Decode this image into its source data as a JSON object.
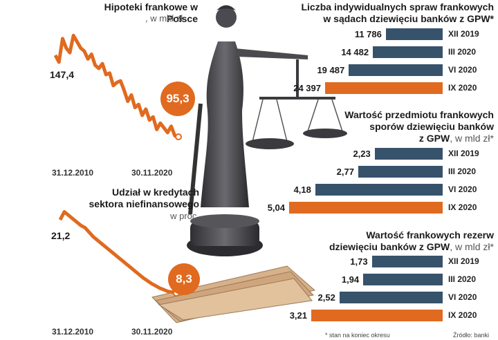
{
  "chart_data": [
    {
      "type": "line",
      "title": "Hipoteki frankowe w Polsce",
      "unit": ", w mld zł",
      "x": [
        "31.12.2010",
        "30.11.2020"
      ],
      "start_value": 147.4,
      "end_value": 95.3,
      "start_label": "147,4",
      "end_label": "95,3",
      "series_trend": [
        147.4,
        143,
        158,
        152,
        149,
        160,
        156,
        152,
        150,
        145,
        148,
        141,
        139,
        142,
        135,
        136,
        128,
        130,
        131,
        125,
        118,
        122,
        114,
        116,
        109,
        113,
        106,
        108,
        100,
        104,
        101,
        98,
        102,
        96,
        95.3
      ],
      "ylim": [
        90,
        165
      ],
      "color": "#e06a1f"
    },
    {
      "type": "line",
      "title_line1": "Udział w kredytach",
      "title_line2": "sektora niefinansowego",
      "unit": "w proc.",
      "x": [
        "31.12.2010",
        "30.11.2020"
      ],
      "start_value": 21.2,
      "end_value": 8.3,
      "start_label": "21,2",
      "end_label": "8,3",
      "series_trend": [
        21.2,
        22.6,
        22.0,
        21.4,
        20.8,
        20.2,
        19.8,
        19.0,
        18.2,
        17.6,
        17.0,
        16.4,
        15.8,
        15.2,
        14.6,
        14.0,
        13.4,
        12.8,
        12.2,
        11.6,
        11.0,
        10.5,
        10.0,
        9.6,
        9.2,
        8.9,
        8.6,
        8.5,
        8.3
      ],
      "ylim": [
        7,
        24
      ],
      "color": "#e06a1f"
    },
    {
      "type": "bar",
      "title_line1": "Liczba indywidualnych spraw frankowych",
      "title_line2": "w sądach dziewięciu banków z GPW*",
      "categories": [
        "XII 2019",
        "III 2020",
        "VI 2020",
        "IX 2020"
      ],
      "values": [
        11786,
        14482,
        19487,
        24397
      ],
      "labels": [
        "11 786",
        "14 482",
        "19 487",
        "24 397"
      ],
      "ylim": [
        0,
        24397
      ]
    },
    {
      "type": "bar",
      "title_line1": "Wartość przedmiotu frankowych",
      "title_line2": "sporów dziewięciu banków",
      "title_line3": "z GPW",
      "unit": ", w mld zł*",
      "categories": [
        "XII 2019",
        "III 2020",
        "VI 2020",
        "IX 2020"
      ],
      "values": [
        2.23,
        2.77,
        4.18,
        5.04
      ],
      "labels": [
        "2,23",
        "2,77",
        "4,18",
        "5,04"
      ],
      "ylim": [
        0,
        5.04
      ]
    },
    {
      "type": "bar",
      "title_line1": "Wartość frankowych rezerw",
      "title_line2": "dziewięciu banków z GPW",
      "unit": ", w mld zł*",
      "categories": [
        "XII 2019",
        "III 2020",
        "VI 2020",
        "IX 2020"
      ],
      "values": [
        1.73,
        1.94,
        2.52,
        3.21
      ],
      "labels": [
        "1,73",
        "1,94",
        "2,52",
        "3,21"
      ],
      "ylim": [
        0,
        3.21
      ]
    }
  ],
  "colors": {
    "accent": "#e06a1f",
    "navy": "#37526b"
  },
  "footnote": "* stan na koniec okresu",
  "source": "Źródło: banki"
}
